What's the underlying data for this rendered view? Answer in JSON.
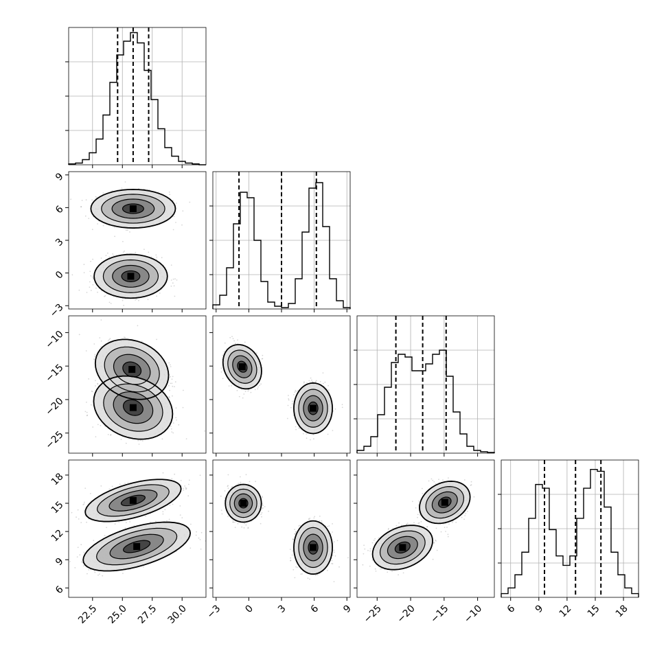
{
  "chart_data": {
    "type": "corner",
    "params": [
      {
        "xlim": [
          20.5,
          32.0
        ],
        "xticks": [
          22.5,
          25.0,
          27.5,
          30.0
        ],
        "xtick_labels": [
          "22.5",
          "25.0",
          "27.5",
          "30.0"
        ],
        "quantiles": [
          24.6,
          25.9,
          27.2
        ]
      },
      {
        "xlim": [
          -3.3,
          9.3
        ],
        "xticks": [
          -3,
          0,
          3,
          6,
          9
        ],
        "xtick_labels": [
          "−3",
          "0",
          "3",
          "6",
          "9"
        ],
        "quantiles": [
          -0.9,
          3.0,
          6.2
        ]
      },
      {
        "xlim": [
          -28.0,
          -7.5
        ],
        "xticks": [
          -25,
          -20,
          -15,
          -10
        ],
        "xtick_labels": [
          "−25",
          "−20",
          "−15",
          "−10"
        ],
        "quantiles": [
          -22.2,
          -18.2,
          -14.7
        ]
      },
      {
        "xlim": [
          5.0,
          19.6
        ],
        "xticks": [
          6,
          9,
          12,
          15,
          18
        ],
        "xtick_labels": [
          "6",
          "9",
          "12",
          "15",
          "18"
        ],
        "quantiles": [
          9.6,
          12.9,
          15.6
        ]
      }
    ],
    "ylims": [
      null,
      [
        -3.3,
        9.3
      ],
      [
        -28.0,
        -7.5
      ],
      [
        5.0,
        19.6
      ]
    ],
    "yticks": [
      null,
      [
        -3,
        0,
        3,
        6,
        9
      ],
      [
        -25,
        -20,
        -15,
        -10
      ],
      [
        6,
        9,
        12,
        15,
        18
      ]
    ],
    "ytick_labels": [
      null,
      [
        "−3",
        "0",
        "3",
        "6",
        "9"
      ],
      [
        "−25",
        "−20",
        "−15",
        "−10"
      ],
      [
        "6",
        "9",
        "12",
        "15",
        "18"
      ]
    ],
    "histograms": [
      {
        "bin_edges": [
          20.5,
          21.075,
          21.65,
          22.225,
          22.8,
          23.375,
          23.95,
          24.525,
          25.1,
          25.675,
          26.25,
          26.825,
          27.4,
          27.975,
          28.55,
          29.125,
          29.7,
          30.275,
          30.85,
          31.425,
          32.0
        ],
        "counts": [
          0.5,
          1,
          3,
          7,
          15,
          29,
          48,
          64,
          72,
          77,
          71,
          55,
          38,
          21,
          10,
          5,
          2,
          1,
          0.5,
          0
        ],
        "ymax": 80
      },
      {
        "bin_edges": [
          -3.3,
          -2.67,
          -2.04,
          -1.41,
          -0.78,
          -0.15,
          0.48,
          1.11,
          1.74,
          2.37,
          3.0,
          3.63,
          4.26,
          4.89,
          5.52,
          6.15,
          6.78,
          7.41,
          8.04,
          8.67,
          9.3
        ],
        "counts": [
          3,
          10,
          30,
          62,
          85,
          81,
          50,
          20,
          5,
          2,
          1,
          4,
          22,
          56,
          88,
          92,
          60,
          22,
          6,
          1
        ],
        "ymax": 100
      },
      {
        "bin_edges": [
          -28.0,
          -26.975,
          -25.95,
          -24.925,
          -23.9,
          -22.875,
          -21.85,
          -20.825,
          -19.8,
          -18.775,
          -17.75,
          -16.725,
          -15.7,
          -14.675,
          -13.65,
          -12.625,
          -11.6,
          -10.575,
          -9.55,
          -8.525,
          -7.5
        ],
        "counts": [
          2,
          5,
          12,
          28,
          48,
          66,
          72,
          70,
          60,
          60,
          65,
          72,
          75,
          56,
          30,
          14,
          5,
          2,
          1,
          0.5
        ],
        "ymax": 100
      },
      {
        "bin_edges": [
          5.0,
          5.73,
          6.46,
          7.19,
          7.92,
          8.65,
          9.38,
          10.11,
          10.84,
          11.57,
          12.3,
          13.03,
          13.76,
          14.49,
          15.22,
          15.95,
          16.68,
          17.41,
          18.14,
          18.87,
          19.6
        ],
        "counts": [
          2,
          5,
          12,
          24,
          42,
          60,
          58,
          36,
          22,
          17,
          22,
          42,
          58,
          68,
          67,
          48,
          24,
          12,
          5,
          2
        ],
        "ymax": 73
      }
    ],
    "pair_clusters": {
      "1_0": [
        {
          "mx": 25.9,
          "my": 5.9,
          "sx": 1.5,
          "sy": 0.75,
          "rho": 0
        },
        {
          "mx": 25.7,
          "my": -0.3,
          "sx": 1.3,
          "sy": 0.85,
          "rho": 0
        }
      ],
      "2_0": [
        {
          "mx": 25.8,
          "my": -15.5,
          "sx": 1.3,
          "sy": 1.9,
          "rho": -0.2
        },
        {
          "mx": 25.9,
          "my": -21.2,
          "sx": 1.4,
          "sy": 2.0,
          "rho": -0.2
        }
      ],
      "2_1": [
        {
          "mx": -0.6,
          "my": -15.1,
          "sx": 0.75,
          "sy": 1.4,
          "rho": -0.2
        },
        {
          "mx": 5.9,
          "my": -21.3,
          "sx": 0.75,
          "sy": 1.6,
          "rho": 0
        }
      ],
      "3_0": [
        {
          "mx": 25.9,
          "my": 15.3,
          "sx": 1.7,
          "sy": 0.95,
          "rho": 0.55
        },
        {
          "mx": 26.2,
          "my": 10.4,
          "sx": 1.9,
          "sy": 1.1,
          "rho": 0.55
        }
      ],
      "3_1": [
        {
          "mx": -0.5,
          "my": 15.0,
          "sx": 0.7,
          "sy": 0.85,
          "rho": 0
        },
        {
          "mx": 5.9,
          "my": 10.3,
          "sx": 0.75,
          "sy": 1.2,
          "rho": 0
        }
      ],
      "3_2": [
        {
          "mx": -14.9,
          "my": 15.1,
          "sx": 1.6,
          "sy": 0.95,
          "rho": 0.25
        },
        {
          "mx": -21.2,
          "my": 10.3,
          "sx": 1.9,
          "sy": 1.0,
          "rho": 0.3
        }
      ]
    },
    "contour_levels_sigma": [
      0.5,
      1.0,
      1.5,
      2.0
    ],
    "grid": true,
    "quantile_line_style": "dashed"
  }
}
